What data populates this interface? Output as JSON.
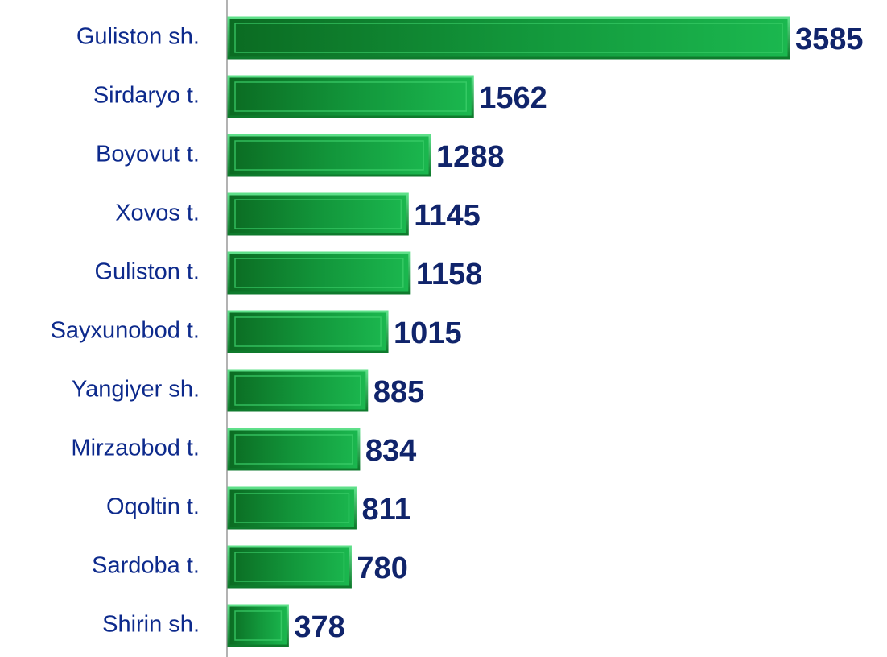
{
  "chart_data": {
    "type": "bar",
    "orientation": "horizontal",
    "categories": [
      "Guliston sh.",
      "Sirdaryo t.",
      "Boyovut t.",
      "Xovos t.",
      "Guliston t.",
      "Sayxunobod t.",
      "Yangiyer sh.",
      "Mirzaobod t.",
      "Oqoltin t.",
      "Sardoba t.",
      "Shirin sh."
    ],
    "values": [
      3585,
      1562,
      1288,
      1145,
      1158,
      1015,
      885,
      834,
      811,
      780,
      378
    ],
    "color": "#17a544"
  }
}
